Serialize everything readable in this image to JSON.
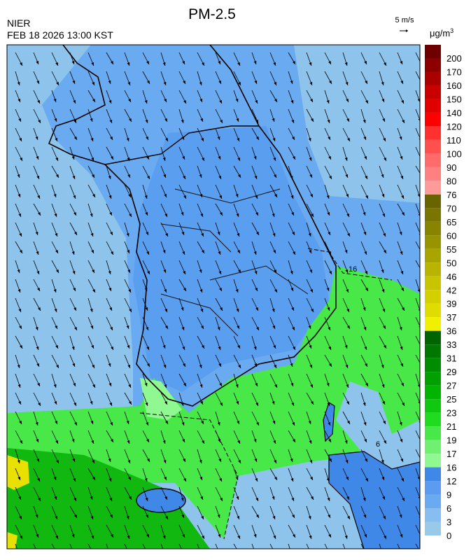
{
  "header": {
    "title": "PM-2.5",
    "agency": "NIER",
    "datetime": "FEB 18 2026 13:00 KST"
  },
  "wind_scale": {
    "label": "5 m/s"
  },
  "colorbar": {
    "unit": "μg/m",
    "unit_power": "3",
    "labels": [
      "200",
      "170",
      "160",
      "150",
      "140",
      "120",
      "110",
      "100",
      "90",
      "80",
      "76",
      "70",
      "65",
      "60",
      "55",
      "50",
      "46",
      "42",
      "39",
      "37",
      "36",
      "33",
      "31",
      "29",
      "27",
      "25",
      "23",
      "21",
      "19",
      "17",
      "16",
      "12",
      "9",
      "6",
      "3",
      "0"
    ],
    "colors": [
      "#6e0000",
      "#8c0000",
      "#aa0000",
      "#c80000",
      "#e00000",
      "#ff0000",
      "#ff3030",
      "#ff5050",
      "#ff6a6a",
      "#ff8080",
      "#ff9a9a",
      "#6a6400",
      "#7a7400",
      "#888400",
      "#989400",
      "#a8a400",
      "#b8b400",
      "#c8c400",
      "#d4d000",
      "#e0dc00",
      "#f0f000",
      "#006400",
      "#007800",
      "#008c00",
      "#00a000",
      "#00b400",
      "#10c810",
      "#20dc20",
      "#48e848",
      "#70f070",
      "#90f890",
      "#3f88e8",
      "#5c9cf0",
      "#6aaaf0",
      "#87bdf0",
      "#99c9e8"
    ]
  },
  "contour_labels": [
    "16",
    "6"
  ]
}
